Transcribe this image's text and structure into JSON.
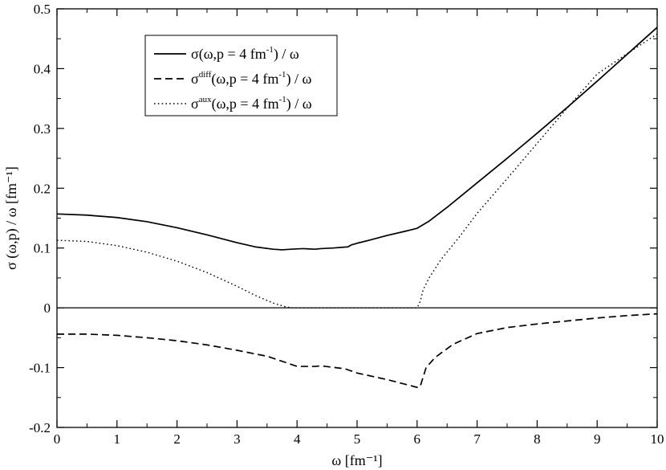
{
  "chart_data": {
    "type": "line",
    "xlabel": "ω [fm⁻¹]",
    "ylabel": "σ (ω,p) / ω  [fm⁻¹]",
    "xlim": [
      0,
      10
    ],
    "ylim": [
      -0.2,
      0.5
    ],
    "x_ticks": [
      "0",
      "1",
      "2",
      "3",
      "4",
      "5",
      "6",
      "7",
      "8",
      "9",
      "10"
    ],
    "y_ticks": [
      "-0.2",
      "-0.1",
      "0",
      "0.1",
      "0.2",
      "0.3",
      "0.4",
      "0.5"
    ],
    "grid": false,
    "zero_line": true,
    "legend_position": "top-left",
    "series": [
      {
        "name": "σ(ω,p = 4 fm⁻¹) / ω",
        "legend": {
          "base": "σ",
          "sup": "",
          "args": "(ω,p = 4 fm",
          "exp": "-1",
          "tail": ") / ω"
        },
        "style": "solid",
        "x": [
          0,
          0.5,
          1,
          1.5,
          2,
          2.5,
          3,
          3.3,
          3.6,
          3.75,
          3.9,
          4.1,
          4.3,
          4.4,
          4.6,
          4.85,
          4.9,
          5.0,
          5.2,
          5.5,
          5.8,
          6.0,
          6.2,
          6.5,
          7,
          7.5,
          8,
          8.5,
          9,
          9.5,
          10
        ],
        "y": [
          0.157,
          0.155,
          0.151,
          0.144,
          0.134,
          0.122,
          0.109,
          0.102,
          0.098,
          0.097,
          0.098,
          0.099,
          0.098,
          0.099,
          0.1,
          0.102,
          0.105,
          0.108,
          0.113,
          0.121,
          0.128,
          0.133,
          0.145,
          0.168,
          0.209,
          0.25,
          0.292,
          0.335,
          0.379,
          0.424,
          0.469
        ]
      },
      {
        "name": "σ^diff(ω,p = 4 fm⁻¹) / ω",
        "legend": {
          "base": "σ",
          "sup": "diff",
          "args": "(ω,p = 4 fm",
          "exp": "-1",
          "tail": ") / ω"
        },
        "style": "dashed",
        "x": [
          0,
          0.5,
          1,
          1.5,
          2,
          2.5,
          3,
          3.5,
          3.8,
          4.0,
          4.3,
          4.4,
          4.8,
          5.0,
          5.5,
          6.0,
          6.05,
          6.15,
          6.3,
          6.6,
          7,
          7.5,
          8,
          8.5,
          9,
          9.5,
          10
        ],
        "y": [
          -0.044,
          -0.044,
          -0.046,
          -0.05,
          -0.055,
          -0.062,
          -0.071,
          -0.081,
          -0.091,
          -0.098,
          -0.098,
          -0.097,
          -0.102,
          -0.109,
          -0.12,
          -0.133,
          -0.132,
          -0.1,
          -0.083,
          -0.061,
          -0.043,
          -0.033,
          -0.027,
          -0.022,
          -0.017,
          -0.013,
          -0.01
        ]
      },
      {
        "name": "σ^aux(ω,p = 4 fm⁻¹) / ω",
        "legend": {
          "base": "σ",
          "sup": "aux",
          "args": "(ω,p = 4 fm",
          "exp": "-1",
          "tail": ") / ω"
        },
        "style": "dotted",
        "x": [
          0,
          0.5,
          1,
          1.5,
          2,
          2.5,
          3,
          3.3,
          3.6,
          3.8,
          3.9,
          4.5,
          5.5,
          6.0,
          6.05,
          6.1,
          6.2,
          6.4,
          6.7,
          7,
          7.5,
          8,
          8.5,
          9,
          9.5,
          10
        ],
        "y": [
          0.113,
          0.111,
          0.104,
          0.093,
          0.078,
          0.059,
          0.036,
          0.021,
          0.008,
          0.002,
          0.0,
          0.0,
          0.0,
          0.0,
          0.01,
          0.03,
          0.05,
          0.081,
          0.118,
          0.158,
          0.216,
          0.275,
          0.334,
          0.391,
          0.425,
          0.458
        ]
      }
    ]
  }
}
